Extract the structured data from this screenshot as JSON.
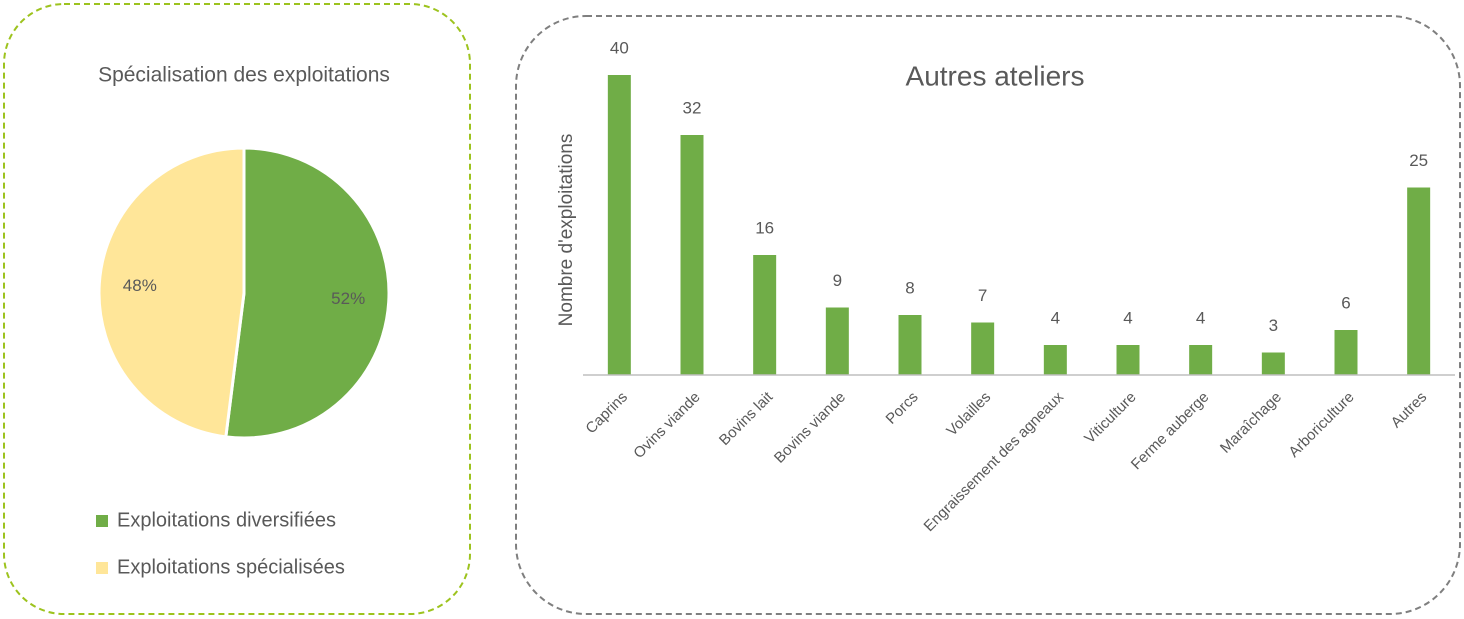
{
  "chart_data": [
    {
      "type": "pie",
      "title": "Spécialisation des exploitations",
      "labels": [
        "Exploitations diversifiées",
        "Exploitations spécialisées"
      ],
      "values": [
        52,
        48
      ],
      "value_labels": [
        "52%",
        "48%"
      ],
      "colors": [
        "#70ad47",
        "#ffe699"
      ],
      "legend": "bottom"
    },
    {
      "type": "bar",
      "title": "Autres ateliers",
      "ylabel": "Nombre d'exploitations",
      "categories": [
        "Caprins",
        "Ovins viande",
        "Bovins lait",
        "Bovins viande",
        "Porcs",
        "Volailles",
        "Engraissement des agneaux",
        "Viticulture",
        "Ferme auberge",
        "Maraîchage",
        "Arboriculture",
        "Autres"
      ],
      "values": [
        40,
        32,
        16,
        9,
        8,
        7,
        4,
        4,
        4,
        3,
        6,
        25
      ],
      "color": "#70ad47"
    }
  ]
}
